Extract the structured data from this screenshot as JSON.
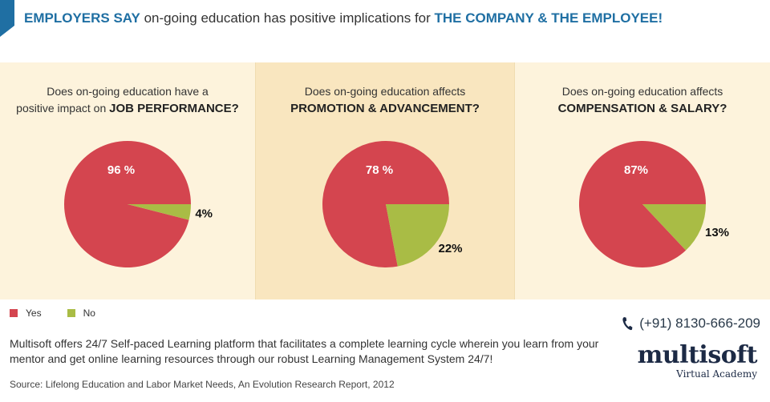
{
  "header": {
    "part1": "EMPLOYERS SAY",
    "part2": " on-going education has positive implications for ",
    "part3": "THE COMPANY & THE EMPLOYEE!"
  },
  "colors": {
    "yes": "#d4454f",
    "no": "#a9bc45",
    "accent": "#1f6fa3"
  },
  "chart_data": [
    {
      "type": "pie",
      "title_line1": "Does on-going education have a",
      "title_line2_plain": "positive impact on ",
      "title_line2_bold": "JOB PERFORMANCE?",
      "categories": [
        "Yes",
        "No"
      ],
      "values": [
        96,
        4
      ],
      "labels": [
        "96 %",
        "4%"
      ]
    },
    {
      "type": "pie",
      "title_line1": "Does on-going education affects",
      "title_line2_plain": "",
      "title_line2_bold": "PROMOTION & ADVANCEMENT?",
      "categories": [
        "Yes",
        "No"
      ],
      "values": [
        78,
        22
      ],
      "labels": [
        "78 %",
        "22%"
      ]
    },
    {
      "type": "pie",
      "title_line1": "Does on-going education affects",
      "title_line2_plain": "",
      "title_line2_bold": "COMPENSATION & SALARY?",
      "categories": [
        "Yes",
        "No"
      ],
      "values": [
        87,
        13
      ],
      "labels": [
        "87%",
        "13%"
      ]
    }
  ],
  "legend": {
    "yes": "Yes",
    "no": "No"
  },
  "description": "Multisoft offers 24/7 Self-paced Learning platform that facilitates a complete learning cycle wherein you learn from your mentor and get online learning resources through our robust Learning Management System 24/7!",
  "source": "Source: Lifelong Education and Labor Market Needs, An Evolution Research Report, 2012",
  "contact": {
    "phone": "(+91) 8130-666-209",
    "phone_icon": "phone-icon"
  },
  "logo": {
    "brand": "multisoft",
    "sub": "Virtual Academy"
  }
}
